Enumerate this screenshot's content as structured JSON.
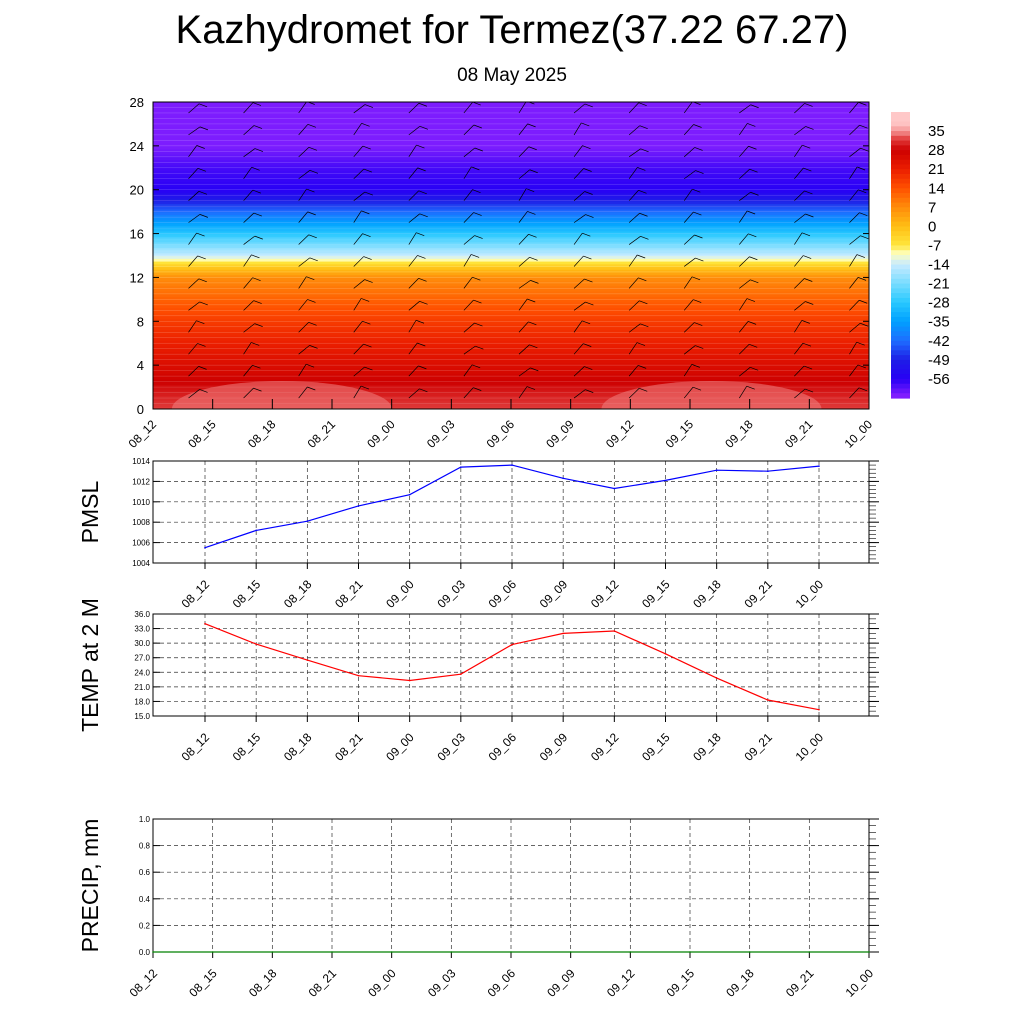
{
  "header": {
    "title": "Kazhydromet for Termez(37.22 67.27)",
    "subtitle": "08 May 2025"
  },
  "colors": {
    "pmsl_line": "#0000ff",
    "temp_line": "#ff0000",
    "precip_line": "#008000"
  },
  "chart_data": [
    {
      "type": "heatmap",
      "title": "",
      "ylim": [
        0,
        28
      ],
      "y_ticks": [
        "0",
        "4",
        "8",
        "12",
        "16",
        "20",
        "24",
        "28"
      ],
      "x_ticks": [
        "08_12",
        "08_15",
        "08_18",
        "08_21",
        "09_00",
        "09_03",
        "09_06",
        "09_09",
        "09_12",
        "09_15",
        "09_18",
        "09_21",
        "10_00"
      ],
      "colorbar_labels": [
        "35",
        "28",
        "21",
        "14",
        "7",
        "0",
        "-7",
        "-14",
        "-21",
        "-28",
        "-35",
        "-42",
        "-49",
        "-56"
      ],
      "profile": {
        "levels": [
          0,
          2,
          4,
          6,
          8,
          10,
          12,
          13,
          14,
          16,
          18,
          20,
          22,
          24,
          28
        ],
        "temps": [
          32,
          29,
          25,
          21,
          17,
          12,
          7,
          -2,
          -14,
          -28,
          -42,
          -56,
          -58,
          -62,
          -62
        ]
      },
      "wind_barbs": "present"
    },
    {
      "type": "line",
      "ylabel": "PMSL",
      "ylim": [
        1004,
        1014
      ],
      "y_ticks": [
        "1004",
        "1006",
        "1008",
        "1010",
        "1012",
        "1014"
      ],
      "x": [
        "08_12",
        "08_15",
        "08_18",
        "08_21",
        "09_00",
        "09_03",
        "09_06",
        "09_09",
        "09_12",
        "09_15",
        "09_18",
        "09_21",
        "10_00"
      ],
      "values": [
        1005.5,
        1007.2,
        1008.1,
        1009.6,
        1010.7,
        1013.4,
        1013.6,
        1012.3,
        1011.3,
        1012.1,
        1013.1,
        1013.0,
        1013.5
      ]
    },
    {
      "type": "line",
      "ylabel": "TEMP at 2 M",
      "ylim": [
        15,
        36
      ],
      "y_ticks": [
        "15.0",
        "18.0",
        "21.0",
        "24.0",
        "27.0",
        "30.0",
        "33.0",
        "36.0"
      ],
      "x": [
        "08_12",
        "08_15",
        "08_18",
        "08_21",
        "09_00",
        "09_03",
        "09_06",
        "09_09",
        "09_12",
        "09_15",
        "09_18",
        "09_21",
        "10_00"
      ],
      "values": [
        34.0,
        29.8,
        26.5,
        23.3,
        22.3,
        23.6,
        29.7,
        32.0,
        32.5,
        27.8,
        22.8,
        18.3,
        16.3
      ]
    },
    {
      "type": "line",
      "ylabel": "PRECIP, mm",
      "ylim": [
        0,
        1
      ],
      "y_ticks": [
        "0.0",
        "0.2",
        "0.4",
        "0.6",
        "0.8",
        "1.0"
      ],
      "x": [
        "08_12",
        "08_15",
        "08_18",
        "08_21",
        "09_00",
        "09_03",
        "09_06",
        "09_09",
        "09_12",
        "09_15",
        "09_18",
        "09_21",
        "10_00"
      ],
      "values": [
        0,
        0,
        0,
        0,
        0,
        0,
        0,
        0,
        0,
        0,
        0,
        0,
        0
      ]
    }
  ]
}
